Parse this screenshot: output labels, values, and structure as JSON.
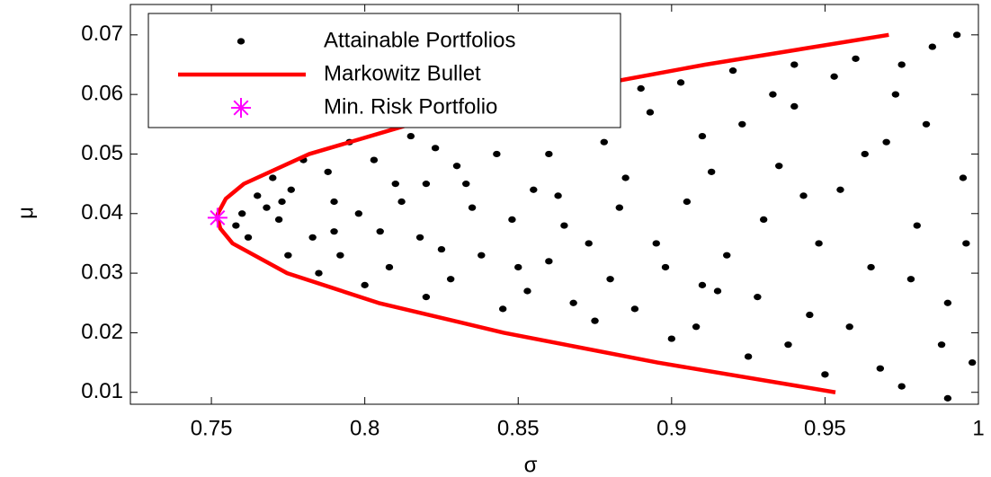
{
  "chart_data": {
    "type": "scatter",
    "xlabel": "σ",
    "ylabel": "μ",
    "xlim": [
      0.7236,
      1.0
    ],
    "ylim": [
      0.008,
      0.0751
    ],
    "xticks": [
      0.75,
      0.8,
      0.85,
      0.9,
      0.95,
      1
    ],
    "yticks": [
      0.01,
      0.02,
      0.03,
      0.04,
      0.05,
      0.06,
      0.07
    ],
    "legend": "upper left",
    "series": [
      {
        "name": "Attainable Portfolios",
        "color": "#000000",
        "type": "scatter",
        "x": [
          0.76,
          0.765,
          0.762,
          0.77,
          0.775,
          0.78,
          0.785,
          0.79,
          0.772,
          0.795,
          0.8,
          0.805,
          0.81,
          0.815,
          0.82,
          0.825,
          0.83,
          0.835,
          0.84,
          0.845,
          0.85,
          0.855,
          0.86,
          0.865,
          0.87,
          0.875,
          0.88,
          0.885,
          0.89,
          0.895,
          0.9,
          0.905,
          0.91,
          0.915,
          0.92,
          0.925,
          0.93,
          0.935,
          0.94,
          0.945,
          0.95,
          0.955,
          0.96,
          0.965,
          0.97,
          0.975,
          0.98,
          0.985,
          0.99,
          0.995,
          0.998,
          0.758,
          0.768,
          0.776,
          0.783,
          0.788,
          0.792,
          0.798,
          0.803,
          0.808,
          0.812,
          0.818,
          0.823,
          0.828,
          0.833,
          0.838,
          0.843,
          0.848,
          0.853,
          0.858,
          0.863,
          0.868,
          0.873,
          0.878,
          0.883,
          0.888,
          0.893,
          0.898,
          0.903,
          0.908,
          0.913,
          0.918,
          0.923,
          0.928,
          0.933,
          0.938,
          0.943,
          0.948,
          0.953,
          0.958,
          0.963,
          0.968,
          0.973,
          0.978,
          0.983,
          0.988,
          0.993,
          0.996,
          0.99,
          0.975,
          0.94,
          0.91,
          0.86,
          0.82,
          0.79,
          0.773
        ],
        "values": [
          0.04,
          0.043,
          0.036,
          0.046,
          0.033,
          0.049,
          0.03,
          0.042,
          0.039,
          0.052,
          0.028,
          0.037,
          0.045,
          0.053,
          0.026,
          0.034,
          0.048,
          0.041,
          0.055,
          0.024,
          0.031,
          0.044,
          0.05,
          0.038,
          0.057,
          0.022,
          0.029,
          0.046,
          0.061,
          0.035,
          0.019,
          0.042,
          0.053,
          0.027,
          0.064,
          0.016,
          0.039,
          0.048,
          0.058,
          0.023,
          0.013,
          0.044,
          0.066,
          0.031,
          0.052,
          0.011,
          0.038,
          0.068,
          0.025,
          0.046,
          0.015,
          0.038,
          0.041,
          0.044,
          0.036,
          0.047,
          0.033,
          0.04,
          0.049,
          0.031,
          0.042,
          0.036,
          0.051,
          0.029,
          0.045,
          0.033,
          0.05,
          0.039,
          0.027,
          0.056,
          0.043,
          0.025,
          0.035,
          0.052,
          0.041,
          0.024,
          0.057,
          0.031,
          0.062,
          0.021,
          0.047,
          0.033,
          0.055,
          0.026,
          0.06,
          0.018,
          0.043,
          0.035,
          0.063,
          0.021,
          0.05,
          0.014,
          0.06,
          0.029,
          0.055,
          0.018,
          0.07,
          0.035,
          0.009,
          0.065,
          0.065,
          0.028,
          0.032,
          0.045,
          0.037,
          0.042
        ]
      },
      {
        "name": "Markowitz Bullet",
        "color": "#ff0000",
        "type": "line",
        "x": [
          0.9534,
          0.8954,
          0.8453,
          0.8045,
          0.7747,
          0.7569,
          0.7529,
          0.752,
          0.7521,
          0.7547,
          0.7606,
          0.7819,
          0.8149,
          0.8584,
          0.9109,
          0.9708
        ],
        "values": [
          0.01,
          0.015,
          0.02,
          0.025,
          0.03,
          0.035,
          0.0375,
          0.0393,
          0.04,
          0.0425,
          0.045,
          0.05,
          0.055,
          0.06,
          0.065,
          0.07
        ]
      },
      {
        "name": "Min. Risk Portfolio",
        "color": "#ff00ff",
        "type": "marker",
        "x": [
          0.752
        ],
        "values": [
          0.0393
        ]
      }
    ]
  }
}
